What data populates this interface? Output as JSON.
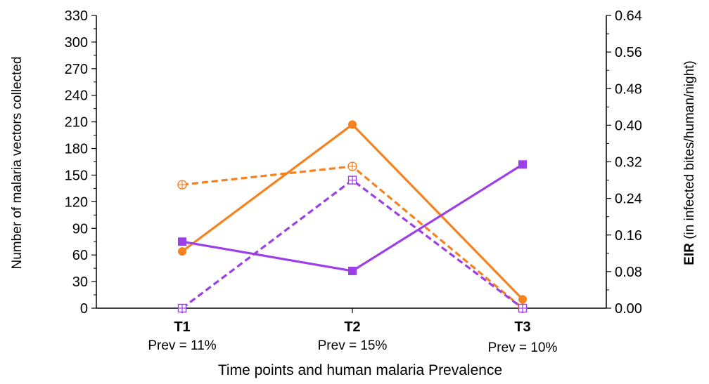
{
  "chart_data": {
    "type": "line",
    "categories": [
      "T1",
      "T2",
      "T3"
    ],
    "category_sublabels": [
      "Prev = 11%",
      "Prev = 15%",
      "Prev = 10%"
    ],
    "xlabel": "Time points and human malaria Prevalence",
    "ylabel_left": "Number of malaria vectors collected",
    "ylabel_right_bold": "EIR",
    "ylabel_right_rest": " (in infected bites/human/night)",
    "ylim_left": [
      0,
      330
    ],
    "yticks_left": [
      "0",
      "30",
      "60",
      "90",
      "120",
      "150",
      "180",
      "210",
      "240",
      "270",
      "300",
      "330"
    ],
    "ylim_right": [
      0,
      0.64
    ],
    "yticks_right": [
      "0.00",
      "0.08",
      "0.16",
      "0.24",
      "0.32",
      "0.40",
      "0.48",
      "0.56",
      "0.64"
    ],
    "grid": false,
    "series": [
      {
        "axis": "left",
        "style": "solid",
        "marker": "circle",
        "color": "#F5821F",
        "values": [
          64,
          207,
          10
        ]
      },
      {
        "axis": "left",
        "style": "solid",
        "marker": "square",
        "color": "#9B3FE6",
        "values": [
          75,
          42,
          162
        ]
      },
      {
        "axis": "right",
        "style": "dashed",
        "marker": "circle-cross",
        "color": "#F5821F",
        "values": [
          0.27,
          0.31,
          0.0
        ]
      },
      {
        "axis": "right",
        "style": "dashed",
        "marker": "square-cross",
        "color": "#9B3FE6",
        "values": [
          0.0,
          0.28,
          0.0
        ]
      }
    ]
  }
}
